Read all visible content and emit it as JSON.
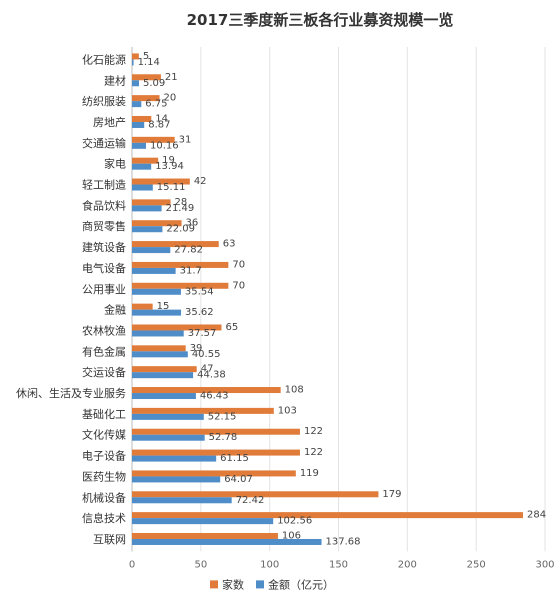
{
  "chart_data": {
    "type": "bar",
    "orientation": "horizontal",
    "title": "2017三季度新三板各行业募资规模一览",
    "categories": [
      "化石能源",
      "建材",
      "纺织服装",
      "房地产",
      "交通运输",
      "家电",
      "轻工制造",
      "食品饮料",
      "商贸零售",
      "建筑设备",
      "电气设备",
      "公用事业",
      "金融",
      "农林牧渔",
      "有色金属",
      "交运设备",
      "休闲、生活及专业服务",
      "基础化工",
      "文化传媒",
      "电子设备",
      "医药生物",
      "机械设备",
      "信息技术",
      "互联网"
    ],
    "series": [
      {
        "name": "家数",
        "color": "#E07B39",
        "values": [
          5,
          21,
          20,
          14,
          31,
          19,
          42,
          28,
          36,
          63,
          70,
          70,
          15,
          65,
          39,
          47,
          108,
          103,
          122,
          122,
          119,
          179,
          284,
          106
        ]
      },
      {
        "name": "金额（亿元）",
        "color": "#4F8DC9",
        "values": [
          1.14,
          5.09,
          6.75,
          8.87,
          10.16,
          13.94,
          15.11,
          21.49,
          22.09,
          27.82,
          31.7,
          35.54,
          35.62,
          37.57,
          40.55,
          44.38,
          46.43,
          52.15,
          52.78,
          61.15,
          64.07,
          72.42,
          102.56,
          137.68
        ]
      }
    ],
    "x_ticks": [
      "0",
      "50",
      "100",
      "150",
      "200",
      "250",
      "300"
    ],
    "xlim": [
      0,
      300
    ],
    "grid": true,
    "legend_position": "bottom"
  }
}
